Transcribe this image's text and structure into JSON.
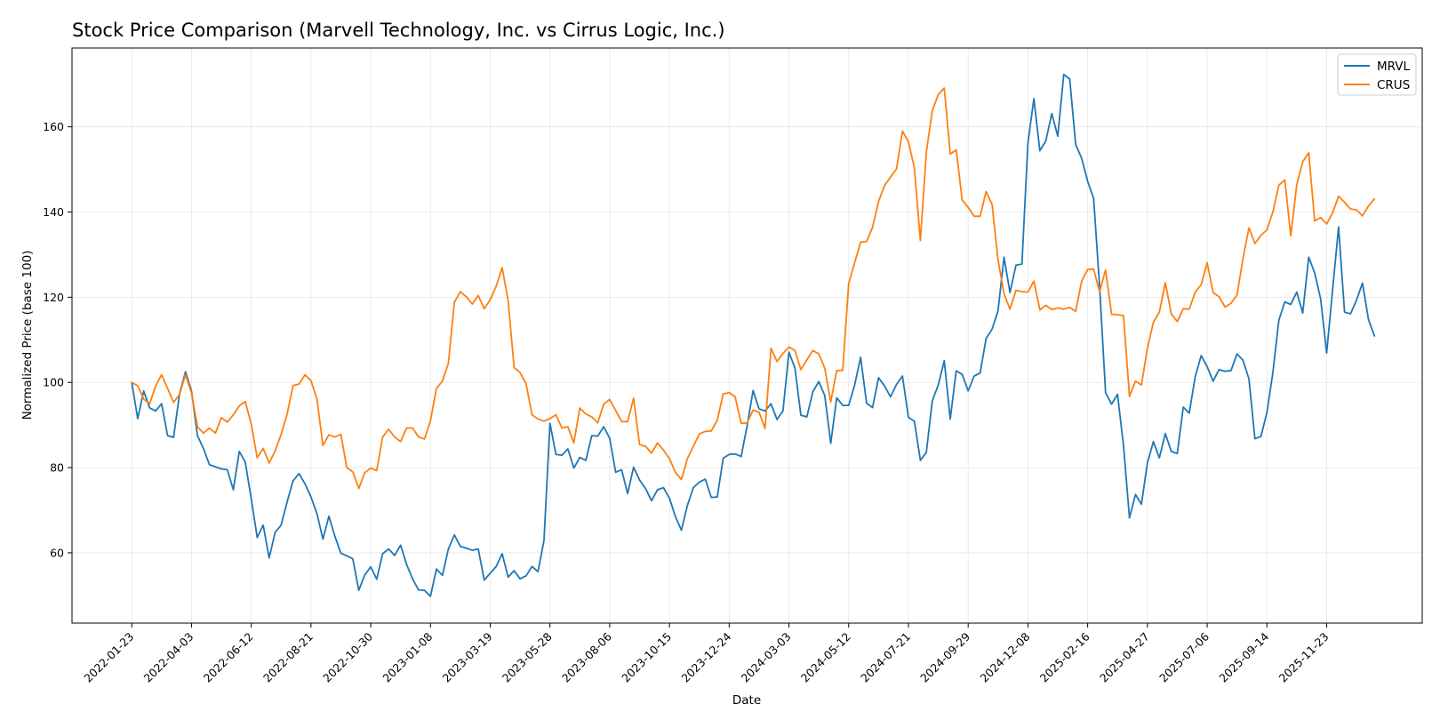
{
  "chart_data": {
    "type": "line",
    "title": "Stock Price Comparison (Marvell Technology, Inc. vs Cirrus Logic, Inc.)",
    "xlabel": "Date",
    "ylabel": "Normalized Price (base 100)",
    "x_ticks": [
      "2022-01-23",
      "2022-04-03",
      "2022-06-12",
      "2022-08-21",
      "2022-10-30",
      "2023-01-08",
      "2023-03-19",
      "2023-05-28",
      "2023-08-06",
      "2023-10-15",
      "2023-12-24",
      "2024-03-03",
      "2024-05-12",
      "2024-07-21",
      "2024-09-29",
      "2024-12-08",
      "2025-02-16",
      "2025-04-27",
      "2025-07-06",
      "2025-09-14",
      "2025-11-23"
    ],
    "y_ticks": [
      60,
      80,
      100,
      120,
      140,
      160
    ],
    "xlim": [
      -10,
      216
    ],
    "ylim": [
      43.5,
      178.5
    ],
    "grid": true,
    "legend_position": "top-right",
    "x_unit": "weeks from 2022-01-23",
    "series": [
      {
        "name": "MRVL",
        "color": "#1f77b4",
        "values": [
          100,
          91.5,
          98,
          94,
          93.3,
          95,
          87.5,
          87.1,
          97.3,
          102.5,
          98,
          87.5,
          84.5,
          80.7,
          80.2,
          79.7,
          79.5,
          74.8,
          83.8,
          81.3,
          72.7,
          63.6,
          66.5,
          58.8,
          64.8,
          66.5,
          71.9,
          76.9,
          78.6,
          76.2,
          73.1,
          69.2,
          63.2,
          68.6,
          63.9,
          59.9,
          59.3,
          58.6,
          51.2,
          54.8,
          56.7,
          53.8,
          59.8,
          60.9,
          59.4,
          61.8,
          57.3,
          53.9,
          51.3,
          51.2,
          49.8,
          56.2,
          54.7,
          60.9,
          64.2,
          61.5,
          61.1,
          60.6,
          60.9,
          53.6,
          55.2,
          56.8,
          59.8,
          54.3,
          55.8,
          53.9,
          54.6,
          56.8,
          55.6,
          62.9,
          90.4,
          83.1,
          82.9,
          84.4,
          79.9,
          82.4,
          81.7,
          87.5,
          87.4,
          89.6,
          86.9,
          78.9,
          79.5,
          73.9,
          80.1,
          77.1,
          75.1,
          72.2,
          74.8,
          75.3,
          72.8,
          68.5,
          65.3,
          71.1,
          75.3,
          76.6,
          77.3,
          73,
          73.1,
          82.2,
          83.1,
          83.2,
          82.6,
          89.8,
          98.1,
          93.8,
          93.3,
          95,
          91.3,
          93.3,
          107.1,
          103.4,
          92.3,
          91.9,
          97.8,
          100.2,
          96.9,
          85.7,
          96.4,
          94.6,
          94.6,
          99.4,
          105.9,
          95.1,
          94.1,
          101.1,
          99.2,
          96.6,
          99.5,
          101.5,
          91.8,
          90.9,
          81.7,
          83.6,
          95.7,
          99.4,
          105.1,
          91.4,
          102.7,
          101.9,
          98,
          101.5,
          102.2,
          110.3,
          112.5,
          116.8,
          129.4,
          121.1,
          127.5,
          127.8,
          156.2,
          166.6,
          154.4,
          156.7,
          163.1,
          157.8,
          172.3,
          171.2,
          155.8,
          152.6,
          147.2,
          143.2,
          122.5,
          97.6,
          94.9,
          97.2,
          85.2,
          68.2,
          73.7,
          71.4,
          81.1,
          86.1,
          82.3,
          88,
          83.8,
          83.3,
          94.2,
          92.8,
          101.3,
          106.3,
          103.7,
          100.3,
          103,
          102.6,
          102.8,
          106.7,
          105.2,
          100.8,
          86.8,
          87.3,
          92.9,
          102.3,
          114.6,
          118.9,
          118.3,
          121.2,
          116.3,
          129.4,
          125.7,
          119.6,
          106.9,
          121.7,
          136.5,
          116.5,
          116.1,
          119.3,
          123.3,
          114.8,
          110.9
        ]
      },
      {
        "name": "CRUS",
        "color": "#ff7f0e",
        "values": [
          100,
          99.2,
          96.1,
          95,
          99.2,
          101.8,
          98.6,
          95.3,
          97.2,
          101.8,
          97.5,
          89.6,
          88.1,
          89.3,
          88.1,
          91.7,
          90.7,
          92.4,
          94.5,
          95.5,
          90.2,
          82.3,
          84.5,
          81.1,
          83.9,
          87.8,
          92.5,
          99.3,
          99.6,
          101.8,
          100.4,
          96.1,
          85.2,
          87.7,
          87.2,
          87.8,
          80,
          79,
          75.1,
          78.8,
          79.9,
          79.3,
          87.2,
          89,
          87.2,
          86.1,
          89.3,
          89.3,
          87.2,
          86.7,
          91,
          98.6,
          100.3,
          104.5,
          118.8,
          121.3,
          120.1,
          118.4,
          120.4,
          117.3,
          119.4,
          122.6,
          126.9,
          119.2,
          103.5,
          102.3,
          99.7,
          92.4,
          91.4,
          90.9,
          91.5,
          92.4,
          89.3,
          89.6,
          85.8,
          94,
          92.6,
          91.9,
          90.5,
          94.9,
          96,
          93.4,
          90.8,
          90.8,
          96.3,
          85.4,
          85,
          83.4,
          85.8,
          84.1,
          82.1,
          78.9,
          77.2,
          82.1,
          85,
          87.9,
          88.5,
          88.6,
          91.1,
          97.3,
          97.6,
          96.6,
          90.4,
          90.5,
          93.5,
          93,
          89.2,
          108,
          104.9,
          106.8,
          108.3,
          107.5,
          103,
          105.3,
          107.5,
          106.7,
          103.3,
          95.4,
          102.8,
          102.8,
          123.2,
          128.1,
          132.9,
          133.1,
          136.4,
          142.5,
          146.2,
          148.2,
          150.1,
          159,
          156.5,
          150.3,
          133.3,
          154.1,
          163.8,
          167.6,
          169.1,
          153.6,
          154.6,
          142.8,
          141.1,
          139,
          139,
          144.8,
          141.8,
          128.8,
          120.8,
          117.2,
          121.6,
          121.3,
          121.2,
          123.8,
          117,
          118.1,
          117.1,
          117.5,
          117.2,
          117.6,
          116.7,
          123.8,
          126.5,
          126.6,
          121.3,
          126.4,
          116,
          115.9,
          115.7,
          96.7,
          100.3,
          99.4,
          108,
          114.1,
          116.5,
          123.4,
          116.1,
          114.3,
          117.3,
          117.2,
          121.2,
          122.9,
          128.1,
          121.1,
          120.1,
          117.7,
          118.6,
          120.5,
          129.1,
          136.3,
          132.6,
          134.5,
          135.8,
          140,
          146.3,
          147.5,
          134.4,
          146.4,
          151.8,
          153.9,
          137.9,
          138.7,
          137.2,
          139.8,
          143.7,
          142.3,
          140.7,
          140.5,
          139.1,
          141.4,
          143.1
        ]
      }
    ]
  }
}
